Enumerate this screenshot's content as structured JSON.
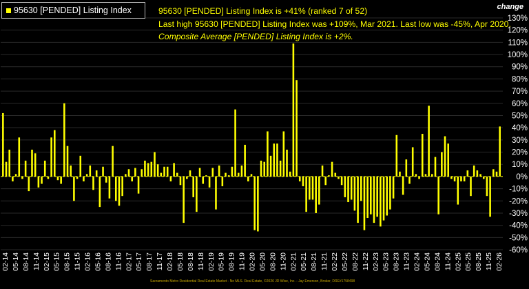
{
  "legend": {
    "label": "95630 [PENDED] Listing Index"
  },
  "annotations": {
    "line1": "95630 [PENDED] Listing Index is +41% (ranked 7 of 52)",
    "line2": "Last high 95630 [PENDED] Listing Index was +109%, Mar 2021. Last low was -45%, Apr 2020.",
    "line3": "Composite Average [PENDED] Listing Index is +2%."
  },
  "axis_title": "change",
  "footer": "Sacramento Metro Residential Real Estate Market - No MLS. Real Estate, ©2026 JD Wise, Inc. - Jay Emerson, Broker, DRE#1758498",
  "colors": {
    "bar": "#ffff00",
    "background": "#000000",
    "grid": "#2a2a2a",
    "zero_line": "#ffff00"
  },
  "chart_data": {
    "type": "bar",
    "title": "95630 [PENDED] Listing Index",
    "ylabel": "change",
    "ylim": [
      -60,
      130
    ],
    "yticks": [
      130,
      120,
      110,
      100,
      90,
      80,
      70,
      60,
      50,
      40,
      30,
      20,
      10,
      0,
      -10,
      -20,
      -30,
      -40,
      -50,
      -60
    ],
    "ytick_labels": [
      "130%",
      "120%",
      "110%",
      "100%",
      "90%",
      "80%",
      "70%",
      "60%",
      "50%",
      "40%",
      "30%",
      "20%",
      "10%",
      "0%",
      "-10%",
      "-20%",
      "-30%",
      "-40%",
      "-50%",
      "-60%"
    ],
    "xtick_labels": [
      "02-14",
      "05-14",
      "08-14",
      "11-14",
      "02-15",
      "05-15",
      "08-15",
      "11-15",
      "02-16",
      "05-16",
      "08-16",
      "11-16",
      "02-17",
      "05-17",
      "08-17",
      "11-17",
      "02-18",
      "05-18",
      "08-18",
      "11-18",
      "02-19",
      "05-19",
      "08-19",
      "11-19",
      "02-20",
      "05-20",
      "08-20",
      "11-20",
      "02-21",
      "05-21",
      "08-21",
      "11-21",
      "02-22",
      "05-22",
      "08-22",
      "11-22",
      "02-23",
      "05-23",
      "08-23",
      "11-23",
      "02-24",
      "05-24",
      "08-24",
      "11-24",
      "02-25",
      "05-25",
      "08-25",
      "11-25",
      "02-26"
    ],
    "values": [
      52,
      12,
      22,
      -4,
      2,
      32,
      -2,
      13,
      -12,
      22,
      19,
      -9,
      -6,
      13,
      -2,
      32,
      38,
      -3,
      -6,
      60,
      25,
      9,
      -20,
      -2,
      17,
      -4,
      2,
      9,
      -11,
      5,
      -25,
      8,
      -5,
      -18,
      25,
      -20,
      -24,
      -16,
      2,
      6,
      -4,
      7,
      -14,
      6,
      13,
      11,
      12,
      20,
      10,
      3,
      8,
      8,
      -4,
      11,
      3,
      -7,
      -38,
      -2,
      5,
      -17,
      -29,
      7,
      -6,
      1,
      -9,
      7,
      -27,
      9,
      -8,
      3,
      1,
      8,
      55,
      3,
      9,
      26,
      -4,
      2,
      -44,
      -45,
      13,
      12,
      37,
      17,
      27,
      27,
      13,
      37,
      22,
      4,
      109,
      79,
      -4,
      -8,
      -29,
      -19,
      -19,
      -30,
      -23,
      9,
      -7,
      1,
      12,
      3,
      -2,
      -7,
      -17,
      -21,
      -19,
      -28,
      -38,
      -20,
      -44,
      -34,
      -31,
      -38,
      -33,
      -41,
      -36,
      -32,
      -27,
      -18,
      34,
      4,
      -15,
      14,
      -6,
      24,
      2,
      -2,
      35,
      2,
      58,
      2,
      16,
      -31,
      20,
      33,
      27,
      -2,
      -4,
      -23,
      -4,
      -4,
      5,
      -16,
      9,
      5,
      2,
      -2,
      -16,
      -33,
      6,
      4,
      41
    ]
  }
}
